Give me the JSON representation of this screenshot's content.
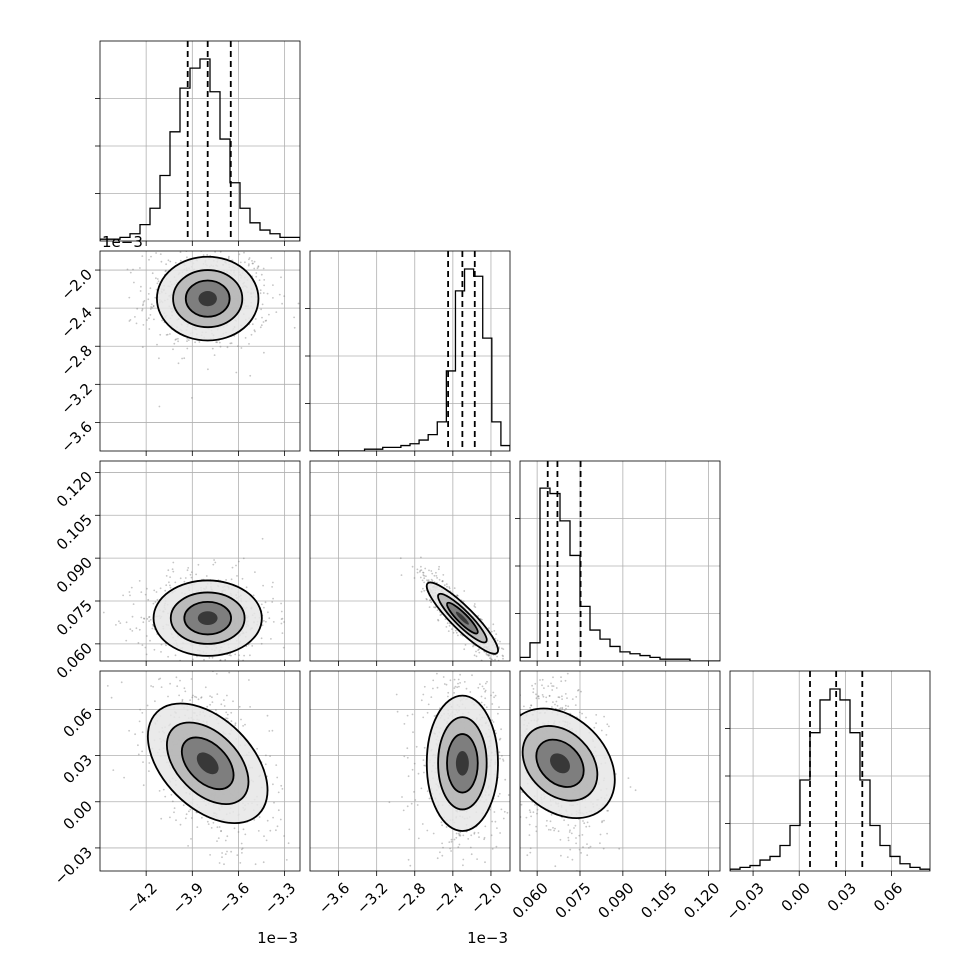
{
  "chart_data": {
    "type": "corner",
    "parameters": [
      {
        "range": [
          -4.5,
          -3.2
        ],
        "ticks": [
          -4.2,
          -3.9,
          -3.6,
          -3.3
        ],
        "tick_labels": [
          "−4.2",
          "−3.9",
          "−3.6",
          "−3.3"
        ],
        "multiplier": "1e−3",
        "quantiles": [
          -3.93,
          -3.8,
          -3.65
        ]
      },
      {
        "range": [
          -3.9,
          -1.8
        ],
        "ticks": [
          -3.6,
          -3.2,
          -2.8,
          -2.4,
          -2.0
        ],
        "tick_labels": [
          "−3.6",
          "−3.2",
          "−2.8",
          "−2.4",
          "−2.0"
        ],
        "multiplier": "1e−3",
        "quantiles": [
          -2.45,
          -2.3,
          -2.17
        ]
      },
      {
        "range": [
          0.054,
          0.124
        ],
        "ticks": [
          0.06,
          0.075,
          0.09,
          0.105,
          0.12
        ],
        "tick_labels": [
          "0.060",
          "0.075",
          "0.090",
          "0.105",
          "0.120"
        ],
        "multiplier": "",
        "quantiles": [
          0.0637,
          0.0671,
          0.0752
        ]
      },
      {
        "range": [
          -0.045,
          0.085
        ],
        "ticks": [
          -0.03,
          0.0,
          0.03,
          0.06
        ],
        "tick_labels": [
          "−0.03",
          "0.00",
          "0.03",
          "0.06"
        ],
        "multiplier": "",
        "quantiles": [
          0.007,
          0.024,
          0.041
        ]
      }
    ],
    "histograms": [
      [
        1,
        1,
        2,
        4,
        9,
        18,
        36,
        60,
        84,
        95,
        100,
        82,
        56,
        32,
        18,
        10,
        6,
        4,
        2,
        2
      ],
      [
        0,
        0,
        0,
        0,
        0,
        0,
        1,
        1,
        2,
        2,
        3,
        4,
        6,
        9,
        16,
        44,
        88,
        100,
        96,
        62,
        16,
        3
      ],
      [
        2,
        10,
        95,
        92,
        77,
        58,
        30,
        17,
        12,
        8,
        5,
        4,
        3,
        2,
        1,
        1,
        1,
        0,
        0,
        0
      ],
      [
        1,
        2,
        3,
        6,
        8,
        14,
        25,
        50,
        76,
        94,
        100,
        94,
        76,
        50,
        25,
        14,
        8,
        4,
        2,
        1
      ]
    ],
    "pairs": [
      {
        "x": 0,
        "y": 1,
        "mean": [
          -3.8,
          -2.3
        ],
        "sd": [
          0.15,
          0.2
        ],
        "rho": 0.0
      },
      {
        "x": 0,
        "y": 2,
        "mean": [
          -3.8,
          0.069
        ],
        "sd": [
          0.16,
          0.006
        ],
        "rho": 0.0
      },
      {
        "x": 1,
        "y": 2,
        "mean": [
          -2.3,
          0.069
        ],
        "sd": [
          0.16,
          0.006
        ],
        "rho": -0.9
      },
      {
        "x": 0,
        "y": 3,
        "mean": [
          -3.8,
          0.025
        ],
        "sd": [
          0.15,
          0.02
        ],
        "rho": -0.45
      },
      {
        "x": 1,
        "y": 3,
        "mean": [
          -2.3,
          0.025
        ],
        "sd": [
          0.17,
          0.02
        ],
        "rho": 0.0
      },
      {
        "x": 2,
        "y": 3,
        "mean": [
          0.068,
          0.025
        ],
        "sd": [
          0.006,
          0.02
        ],
        "rho": -0.3
      }
    ],
    "grid": true,
    "title": "",
    "xlabel": "",
    "ylabel": ""
  }
}
